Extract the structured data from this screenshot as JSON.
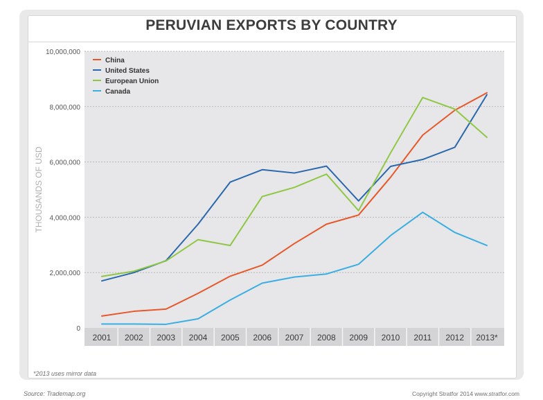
{
  "chart_data": {
    "type": "line",
    "title": "PERUVIAN EXPORTS BY COUNTRY",
    "ylabel": "THOUSANDS OF USD",
    "xlabel": "",
    "categories": [
      "2001",
      "2002",
      "2003",
      "2004",
      "2005",
      "2006",
      "2007",
      "2008",
      "2009",
      "2010",
      "2011",
      "2012",
      "2013*"
    ],
    "yticks": [
      "0",
      "2,000,000",
      "4,000,000",
      "6,000,000",
      "8,000,000",
      "10,000,000"
    ],
    "ylim": [
      0,
      10000000
    ],
    "grid": "horizontal dotted",
    "legend_position": "top-left",
    "series": [
      {
        "name": "China",
        "color": "#e8572a",
        "values": [
          430000,
          600000,
          680000,
          1250000,
          1870000,
          2270000,
          3050000,
          3750000,
          4080000,
          5450000,
          6970000,
          7870000,
          8500000
        ]
      },
      {
        "name": "United States",
        "color": "#2a68ad",
        "values": [
          1700000,
          2000000,
          2430000,
          3750000,
          5270000,
          5720000,
          5600000,
          5850000,
          4590000,
          5840000,
          6090000,
          6530000,
          8430000
        ]
      },
      {
        "name": "European Union",
        "color": "#8fc744",
        "values": [
          1860000,
          2050000,
          2420000,
          3190000,
          2980000,
          4750000,
          5080000,
          5560000,
          4240000,
          6330000,
          8330000,
          7910000,
          6890000
        ]
      },
      {
        "name": "Canada",
        "color": "#3aaee3",
        "values": [
          140000,
          140000,
          130000,
          330000,
          1010000,
          1620000,
          1840000,
          1950000,
          2300000,
          3340000,
          4180000,
          3450000,
          2980000
        ]
      }
    ]
  },
  "footnote": "*2013 uses mirror data",
  "source": "Source: Trademap.org",
  "copyright": "Copyright Stratfor 2014   www.stratfor.com"
}
